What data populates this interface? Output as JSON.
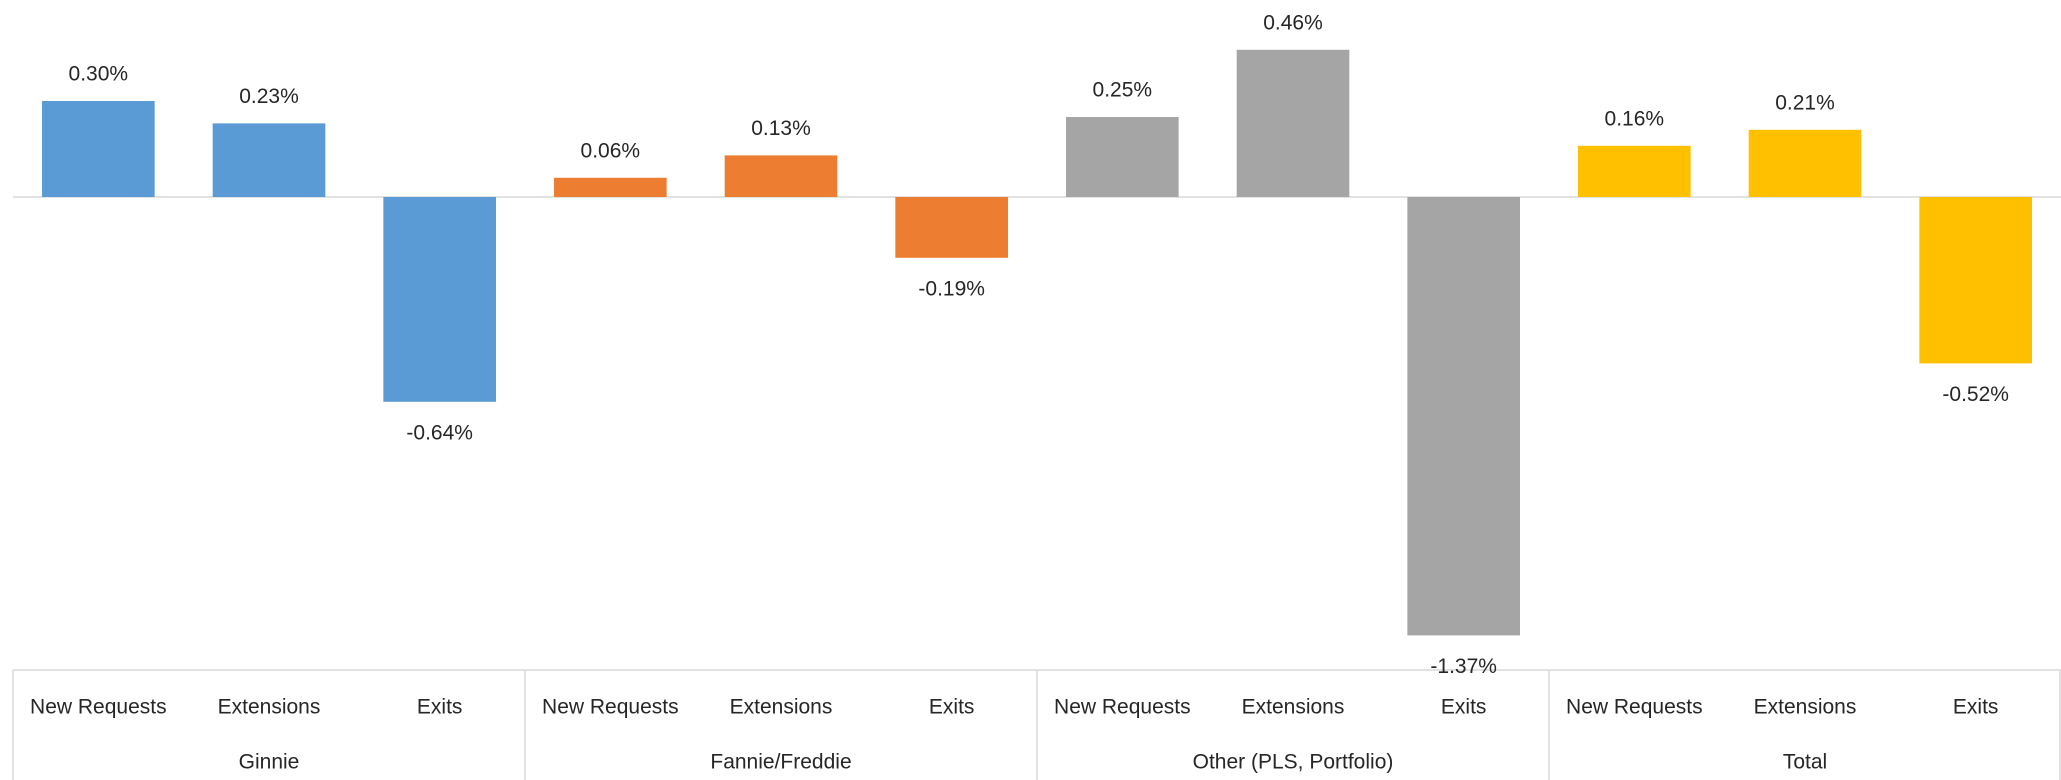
{
  "chart_data": {
    "type": "bar",
    "series": [
      {
        "name": "Ginnie",
        "color": "#5b9bd5",
        "categories": [
          "New Requests",
          "Extensions",
          "Exits"
        ],
        "values": [
          0.3,
          0.23,
          -0.64
        ],
        "value_labels": [
          "0.30%",
          "0.23%",
          "-0.64%"
        ]
      },
      {
        "name": "Fannie/Freddie",
        "color": "#ed7d31",
        "categories": [
          "New Requests",
          "Extensions",
          "Exits"
        ],
        "values": [
          0.06,
          0.13,
          -0.19
        ],
        "value_labels": [
          "0.06%",
          "0.13%",
          "-0.19%"
        ]
      },
      {
        "name": "Other (PLS, Portfolio)",
        "color": "#a5a5a5",
        "categories": [
          "New Requests",
          "Extensions",
          "Exits"
        ],
        "values": [
          0.25,
          0.46,
          -1.37
        ],
        "value_labels": [
          "0.25%",
          "0.46%",
          "-1.37%"
        ]
      },
      {
        "name": "Total",
        "color": "#ffc000",
        "categories": [
          "New Requests",
          "Extensions",
          "Exits"
        ],
        "values": [
          0.16,
          0.21,
          -0.52
        ],
        "value_labels": [
          "0.16%",
          "0.21%",
          "-0.52%"
        ]
      }
    ]
  }
}
